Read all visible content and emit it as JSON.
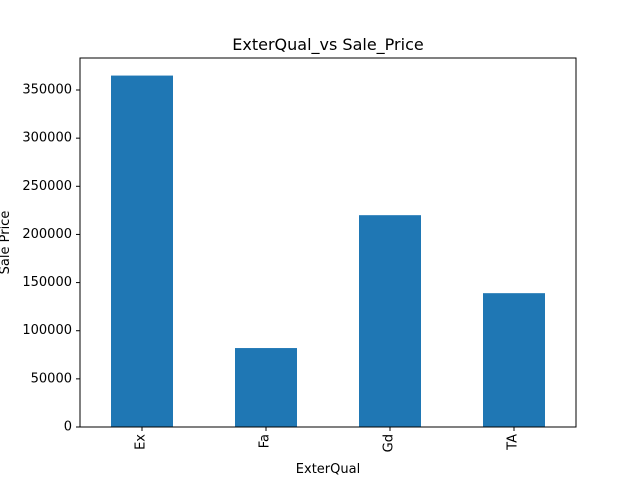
{
  "chart_data": {
    "type": "bar",
    "title": "ExterQual_vs Sale_Price",
    "xlabel": "ExterQual",
    "ylabel": "Sale Price",
    "categories": [
      "Ex",
      "Fa",
      "Gd",
      "TA"
    ],
    "values": [
      365000,
      82000,
      220000,
      139000
    ],
    "ylim": [
      0,
      383250
    ],
    "yticks": [
      0,
      50000,
      100000,
      150000,
      200000,
      250000,
      300000,
      350000
    ],
    "ytick_labels": [
      "0",
      "50000",
      "100000",
      "150000",
      "200000",
      "250000",
      "300000",
      "350000"
    ],
    "bar_color": "#1f77b4",
    "grid": false,
    "legend": false,
    "xtick_rotation": "vertical"
  }
}
